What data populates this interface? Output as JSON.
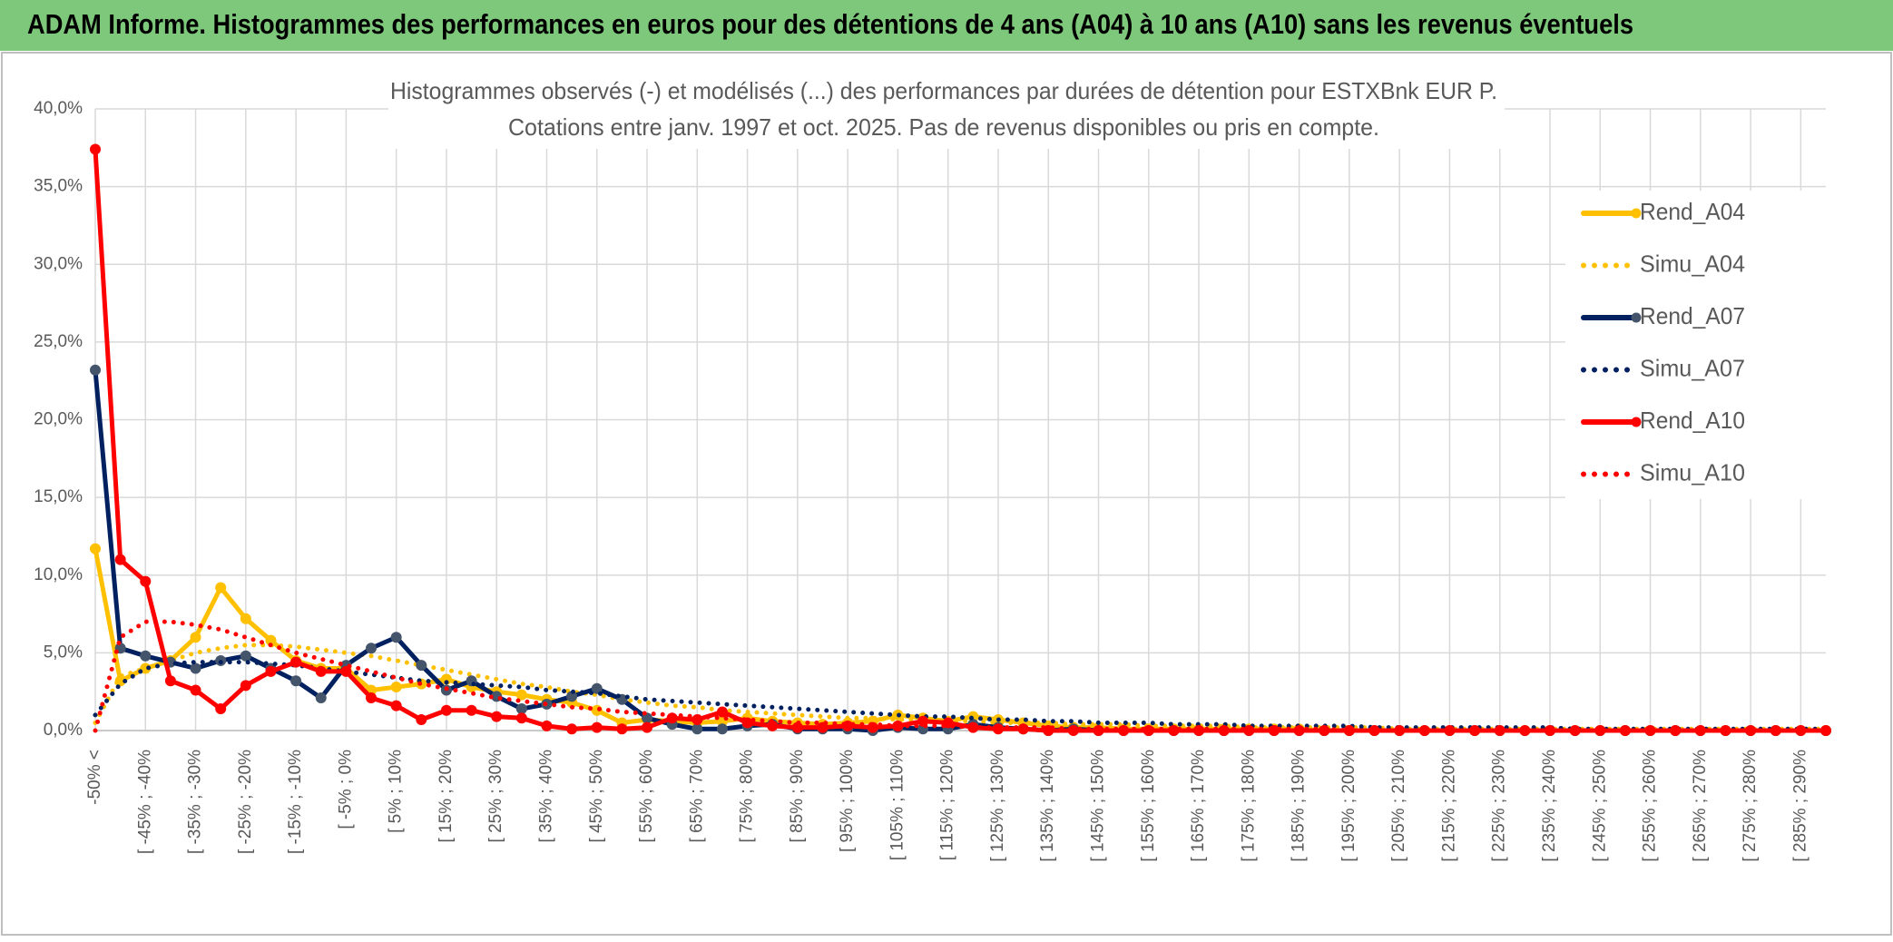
{
  "header": {
    "title": "ADAM Informe. Histogrammes des performances en euros pour des détentions de 4 ans (A04) à 10 ans (A10) sans les revenus éventuels"
  },
  "chart_data": {
    "type": "line",
    "title": "Histogrammes observés (-) et modélisés (...) des performances par durées de détention pour ESTXBnk EUR P.",
    "subtitle": "Cotations entre janv. 1997 et oct. 2025. Pas de revenus disponibles ou pris en compte.",
    "categories": [
      "-50% <",
      null,
      "[ -45% ; -40%",
      null,
      "[ -35% ; -30%",
      null,
      "[ -25% ; -20%",
      null,
      "[ -15% ; -10%",
      null,
      "[ -5% ; 0%",
      null,
      "[ 5% ; 10%",
      null,
      "[ 15% ; 20%",
      null,
      "[ 25% ; 30%",
      null,
      "[ 35% ; 40%",
      null,
      "[ 45% ; 50%",
      null,
      "[ 55% ; 60%",
      null,
      "[ 65% ; 70%",
      null,
      "[ 75% ; 80%",
      null,
      "[ 85% ; 90%",
      null,
      "[ 95% ; 100%",
      null,
      "[ 105% ; 110%",
      null,
      "[ 115% ; 120%",
      null,
      "[ 125% ; 130%",
      null,
      "[ 135% ; 140%",
      null,
      "[ 145% ; 150%",
      null,
      "[ 155% ; 160%",
      null,
      "[ 165% ; 170%",
      null,
      "[ 175% ; 180%",
      null,
      "[ 185% ; 190%",
      null,
      "[ 195% ; 200%",
      null,
      "[ 205% ; 210%",
      null,
      "[ 215% ; 220%",
      null,
      "[ 225% ; 230%",
      null,
      "[ 235% ; 240%",
      null,
      "[ 245% ; 250%",
      null,
      "[ 255% ; 260%",
      null,
      "[ 265% ; 270%",
      null,
      "[ 275% ; 280%",
      null,
      "[ 285% ; 290%",
      null
    ],
    "series": [
      {
        "name": "Rend_A04",
        "color": "#ffc000",
        "style": "solid",
        "markers": true,
        "values": [
          11.7,
          3.2,
          4.0,
          4.5,
          6.0,
          9.2,
          7.2,
          5.8,
          4.5,
          4.0,
          4.0,
          2.6,
          2.8,
          3.0,
          3.3,
          2.8,
          2.5,
          2.3,
          2.0,
          1.8,
          1.3,
          0.5,
          0.7,
          0.6,
          0.5,
          0.6,
          0.8,
          0.6,
          0.5,
          0.4,
          0.5,
          0.6,
          1.0,
          0.8,
          0.6,
          0.9,
          0.7,
          0.5,
          0.3,
          0.2,
          0.2,
          0.1,
          0.1,
          0.1,
          0.1,
          0.1,
          0.1,
          0.1,
          0.1,
          0.0,
          0,
          0,
          0,
          0,
          0,
          0,
          0,
          0,
          0,
          0,
          0,
          0,
          0,
          0,
          0,
          0,
          0,
          0,
          0,
          0
        ]
      },
      {
        "name": "Simu_A04",
        "color": "#ffc000",
        "style": "dotted",
        "markers": false,
        "values": [
          0.5,
          3.5,
          4.0,
          4.5,
          5.0,
          5.3,
          5.5,
          5.5,
          5.4,
          5.2,
          5.0,
          4.8,
          4.5,
          4.2,
          3.9,
          3.6,
          3.3,
          3.0,
          2.8,
          2.5,
          2.3,
          2.0,
          1.8,
          1.6,
          1.5,
          1.3,
          1.2,
          1.1,
          1.0,
          0.9,
          0.8,
          0.8,
          0.7,
          0.7,
          0.6,
          0.6,
          0.5,
          0.5,
          0.5,
          0.4,
          0.4,
          0.4,
          0.3,
          0.3,
          0.3,
          0.3,
          0.2,
          0.2,
          0.2,
          0.2,
          0.2,
          0.2,
          0.1,
          0.1,
          0.1,
          0.1,
          0.1,
          0.1,
          0.1,
          0.1,
          0.1,
          0.1,
          0.1,
          0.1,
          0.1,
          0.1,
          0.1,
          0.1,
          0.1,
          0.1
        ]
      },
      {
        "name": "Rend_A07",
        "color": "#002060",
        "style": "solid",
        "markers": true,
        "marker_color": "#44546a",
        "values": [
          23.2,
          5.3,
          4.8,
          4.4,
          4.0,
          4.5,
          4.8,
          4.0,
          3.2,
          2.1,
          4.2,
          5.3,
          6.0,
          4.2,
          2.6,
          3.2,
          2.2,
          1.4,
          1.7,
          2.2,
          2.7,
          2.0,
          0.8,
          0.4,
          0.1,
          0.1,
          0.3,
          0.4,
          0.1,
          0.1,
          0.1,
          0.0,
          0.2,
          0.1,
          0.1,
          0.4,
          0.2,
          0.1,
          0.0,
          0.1,
          0,
          0,
          0,
          0,
          0,
          0,
          0,
          0,
          0,
          0,
          0,
          0,
          0,
          0,
          0,
          0,
          0,
          0,
          0,
          0,
          0,
          0,
          0,
          0,
          0,
          0,
          0,
          0,
          0,
          0
        ]
      },
      {
        "name": "Simu_A07",
        "color": "#002060",
        "style": "dotted",
        "markers": false,
        "values": [
          1.0,
          3.0,
          4.0,
          4.3,
          4.4,
          4.4,
          4.4,
          4.3,
          4.2,
          4.0,
          3.8,
          3.6,
          3.4,
          3.2,
          3.1,
          3.0,
          2.9,
          2.8,
          2.6,
          2.5,
          2.4,
          2.2,
          2.0,
          1.9,
          1.8,
          1.7,
          1.6,
          1.5,
          1.4,
          1.3,
          1.2,
          1.1,
          1.0,
          0.9,
          0.9,
          0.8,
          0.7,
          0.7,
          0.6,
          0.6,
          0.5,
          0.5,
          0.5,
          0.4,
          0.4,
          0.4,
          0.3,
          0.3,
          0.3,
          0.3,
          0.3,
          0.2,
          0.2,
          0.2,
          0.2,
          0.2,
          0.2,
          0.2,
          0.2,
          0.1,
          0.1,
          0.1,
          0.1,
          0.1,
          0.1,
          0.1,
          0.1,
          0.1,
          0.1,
          0.1
        ]
      },
      {
        "name": "Rend_A10",
        "color": "#ff0000",
        "style": "solid",
        "markers": true,
        "values": [
          37.4,
          11.0,
          9.6,
          3.2,
          2.6,
          1.4,
          2.9,
          3.8,
          4.4,
          3.8,
          3.8,
          2.1,
          1.6,
          0.7,
          1.3,
          1.3,
          0.9,
          0.8,
          0.3,
          0.1,
          0.2,
          0.1,
          0.2,
          0.8,
          0.7,
          1.2,
          0.5,
          0.3,
          0.2,
          0.2,
          0.3,
          0.2,
          0.3,
          0.6,
          0.5,
          0.2,
          0.1,
          0.1,
          0.0,
          0.0,
          0,
          0,
          0,
          0,
          0,
          0,
          0,
          0,
          0,
          0,
          0,
          0,
          0,
          0,
          0,
          0,
          0,
          0,
          0,
          0,
          0,
          0,
          0,
          0,
          0,
          0,
          0,
          0,
          0,
          0
        ]
      },
      {
        "name": "Simu_A10",
        "color": "#ff0000",
        "style": "dotted",
        "markers": false,
        "values": [
          0.0,
          6.0,
          7.0,
          7.0,
          6.8,
          6.5,
          6.0,
          5.5,
          5.0,
          4.6,
          4.2,
          3.8,
          3.4,
          3.0,
          2.7,
          2.4,
          2.1,
          1.9,
          1.7,
          1.5,
          1.4,
          1.2,
          1.1,
          1.0,
          0.9,
          0.8,
          0.7,
          0.6,
          0.5,
          0.5,
          0.4,
          0.4,
          0.3,
          0.3,
          0.3,
          0.2,
          0.2,
          0.2,
          0.2,
          0.1,
          0.1,
          0.1,
          0.1,
          0.1,
          0.1,
          0.1,
          0.1,
          0.1,
          0.1,
          0.1,
          0,
          0,
          0,
          0,
          0,
          0,
          0,
          0,
          0,
          0,
          0,
          0,
          0,
          0,
          0,
          0,
          0,
          0,
          0,
          0
        ]
      }
    ],
    "ylim": [
      0,
      40
    ],
    "yticks": [
      {
        "value": 0,
        "label": "0,0%"
      },
      {
        "value": 5,
        "label": "5,0%"
      },
      {
        "value": 10,
        "label": "10,0%"
      },
      {
        "value": 15,
        "label": "15,0%"
      },
      {
        "value": 20,
        "label": "20,0%"
      },
      {
        "value": 25,
        "label": "25,0%"
      },
      {
        "value": 30,
        "label": "30,0%"
      },
      {
        "value": 35,
        "label": "35,0%"
      },
      {
        "value": 40,
        "label": "40,0%"
      }
    ],
    "grid": true,
    "legend": "right"
  }
}
